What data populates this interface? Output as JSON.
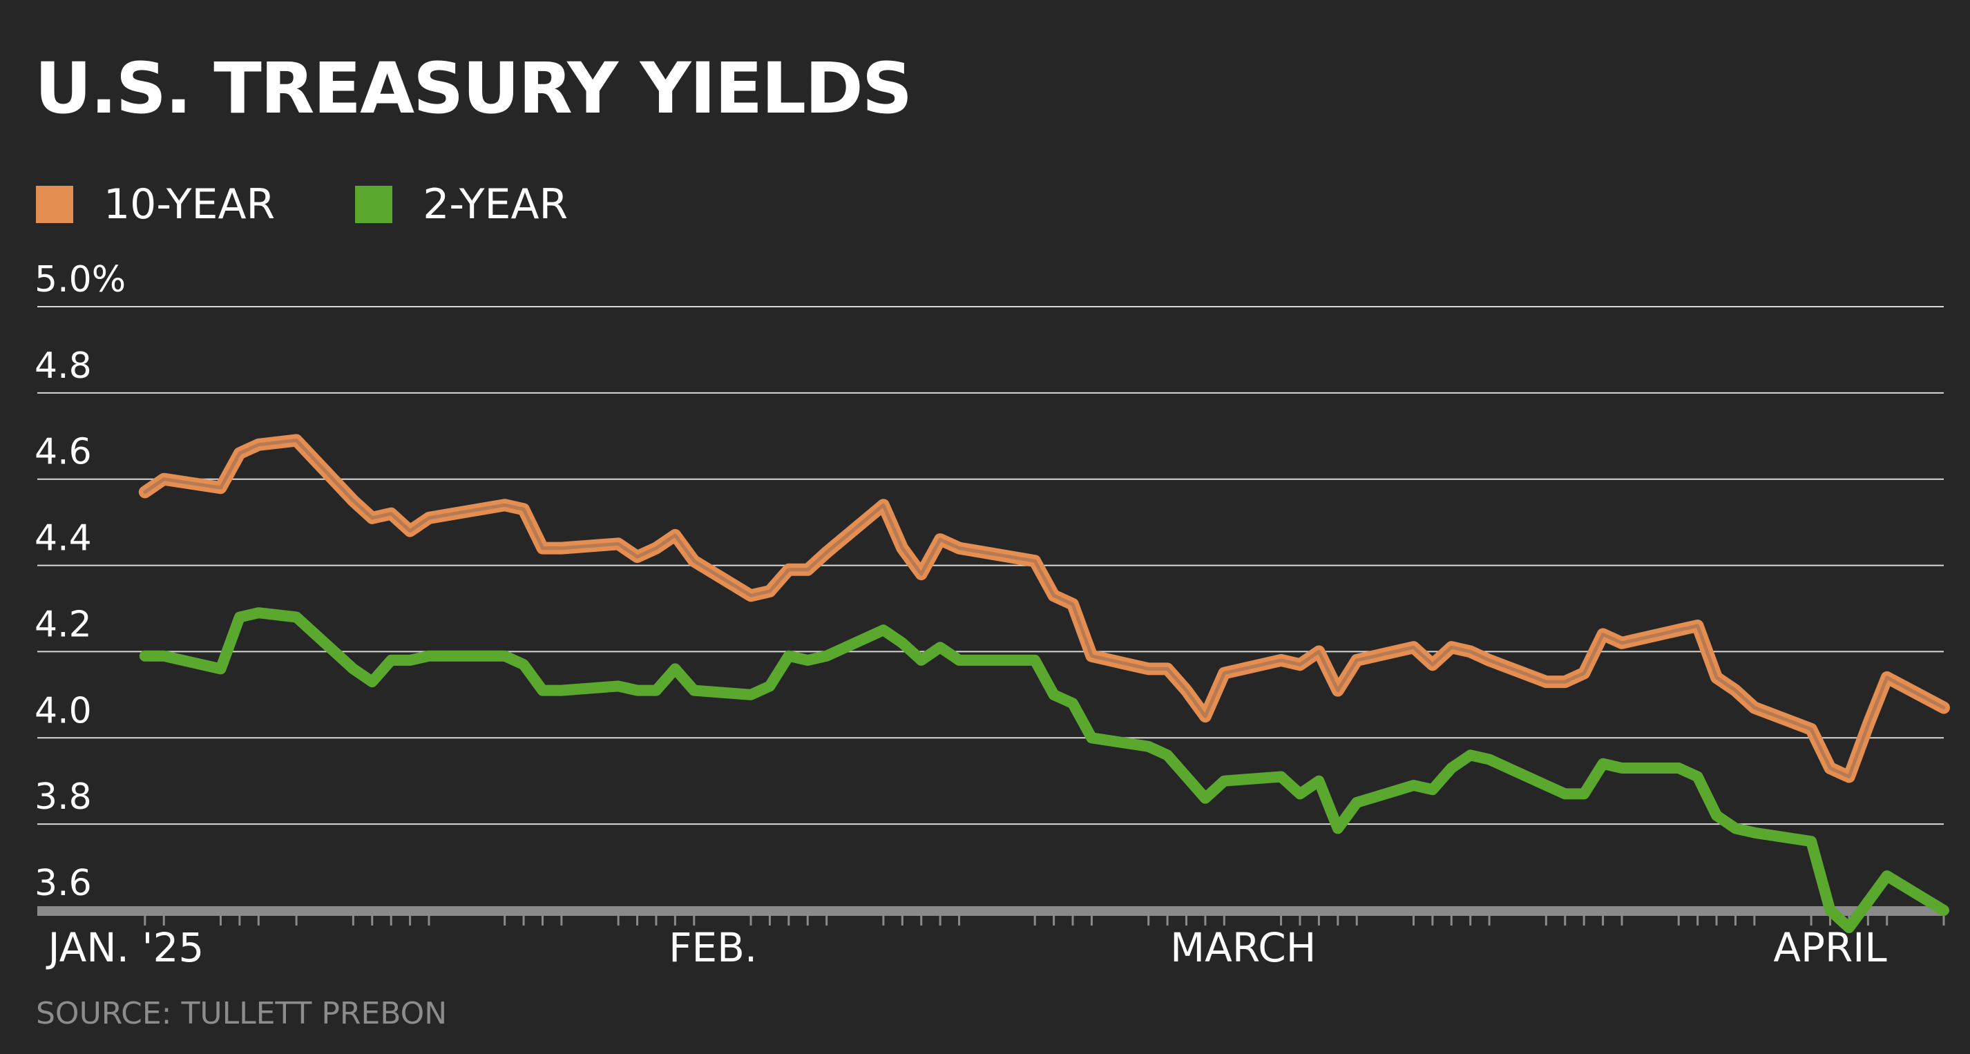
{
  "title": "U.S. TREASURY YIELDS",
  "legend": [
    {
      "label": "10-YEAR",
      "color": "#e58e51"
    },
    {
      "label": "2-YEAR",
      "color": "#5aa82e"
    }
  ],
  "source": "SOURCE: TULLETT PREBON",
  "chart_data": {
    "type": "line",
    "title": "U.S. TREASURY YIELDS",
    "xlabel": "",
    "ylabel": "",
    "ylim": [
      3.6,
      5.0
    ],
    "y_ticks": [
      "5.0%",
      "4.8",
      "4.6",
      "4.4",
      "4.2",
      "4.0",
      "3.8",
      "3.6"
    ],
    "y_tick_values": [
      5.0,
      4.8,
      4.6,
      4.4,
      4.2,
      4.0,
      3.8,
      3.6
    ],
    "x_labels": [
      "JAN. '25",
      "FEB.",
      "MARCH",
      "APRIL"
    ],
    "grid": true,
    "legend_position": "top-left",
    "x": [
      "2025-01-02",
      "2025-01-03",
      "2025-01-06",
      "2025-01-07",
      "2025-01-08",
      "2025-01-10",
      "2025-01-13",
      "2025-01-14",
      "2025-01-15",
      "2025-01-16",
      "2025-01-17",
      "2025-01-21",
      "2025-01-22",
      "2025-01-23",
      "2025-01-24",
      "2025-01-27",
      "2025-01-28",
      "2025-01-29",
      "2025-01-30",
      "2025-01-31",
      "2025-02-03",
      "2025-02-04",
      "2025-02-05",
      "2025-02-06",
      "2025-02-07",
      "2025-02-10",
      "2025-02-11",
      "2025-02-12",
      "2025-02-13",
      "2025-02-14",
      "2025-02-18",
      "2025-02-19",
      "2025-02-20",
      "2025-02-21",
      "2025-02-24",
      "2025-02-25",
      "2025-02-26",
      "2025-02-27",
      "2025-02-28",
      "2025-03-03",
      "2025-03-04",
      "2025-03-05",
      "2025-03-06",
      "2025-03-07",
      "2025-03-10",
      "2025-03-11",
      "2025-03-12",
      "2025-03-13",
      "2025-03-14",
      "2025-03-17",
      "2025-03-18",
      "2025-03-19",
      "2025-03-20",
      "2025-03-21",
      "2025-03-24",
      "2025-03-25",
      "2025-03-26",
      "2025-03-27",
      "2025-03-28",
      "2025-03-31",
      "2025-04-01",
      "2025-04-02",
      "2025-04-03",
      "2025-04-04",
      "2025-04-07"
    ],
    "series": [
      {
        "name": "10-YEAR",
        "color": "#e58e51",
        "values": [
          4.57,
          4.6,
          4.58,
          4.66,
          4.68,
          4.69,
          4.55,
          4.51,
          4.52,
          4.48,
          4.51,
          4.54,
          4.53,
          4.44,
          4.44,
          4.45,
          4.42,
          4.44,
          4.47,
          4.41,
          4.33,
          4.34,
          4.39,
          4.39,
          4.43,
          4.54,
          4.44,
          4.38,
          4.46,
          4.44,
          4.41,
          4.33,
          4.31,
          4.19,
          4.16,
          4.16,
          4.11,
          4.05,
          4.15,
          4.18,
          4.17,
          4.2,
          4.11,
          4.18,
          4.21,
          4.17,
          4.21,
          4.2,
          4.18,
          4.13,
          4.13,
          4.15,
          4.24,
          4.22,
          4.25,
          4.26,
          4.14,
          4.11,
          4.07,
          4.02,
          3.93,
          3.91,
          4.03,
          4.14,
          4.07
        ]
      },
      {
        "name": "2-YEAR",
        "color": "#5aa82e",
        "values": [
          4.19,
          4.19,
          4.16,
          4.28,
          4.29,
          4.28,
          4.16,
          4.13,
          4.18,
          4.18,
          4.19,
          4.19,
          4.17,
          4.11,
          4.11,
          4.12,
          4.11,
          4.11,
          4.16,
          4.11,
          4.1,
          4.12,
          4.19,
          4.18,
          4.19,
          4.25,
          4.22,
          4.18,
          4.21,
          4.18,
          4.18,
          4.1,
          4.08,
          4.0,
          3.98,
          3.96,
          3.91,
          3.86,
          3.9,
          3.91,
          3.87,
          3.9,
          3.79,
          3.85,
          3.89,
          3.88,
          3.93,
          3.96,
          3.95,
          3.89,
          3.87,
          3.87,
          3.94,
          3.93,
          3.93,
          3.91,
          3.82,
          3.79,
          3.78,
          3.76,
          3.6,
          3.56,
          3.62,
          3.68,
          3.6
        ]
      }
    ]
  }
}
